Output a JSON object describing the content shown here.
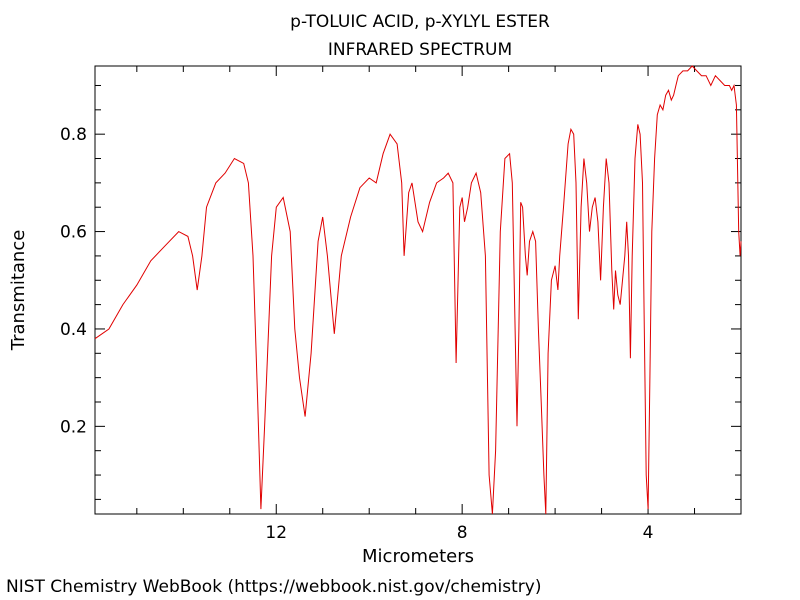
{
  "page": {
    "credit": "NIST Chemistry WebBook (https://webbook.nist.gov/chemistry)"
  },
  "chart_data": {
    "type": "line",
    "title": "p-TOLUIC ACID, p-XYLYL ESTER",
    "subtitle": "INFRARED SPECTRUM",
    "xlabel": "Micrometers",
    "ylabel": "Transmitance",
    "xlim": [
      15.9,
      2.0
    ],
    "ylim": [
      0.02,
      0.94
    ],
    "x_ticks": [
      12,
      8,
      4
    ],
    "y_ticks": [
      0.2,
      0.4,
      0.6,
      0.8
    ],
    "grid": false,
    "colors": {
      "line": "#e00000",
      "axes": "#000000"
    },
    "series": [
      {
        "points": [
          [
            15.9,
            0.38
          ],
          [
            15.6,
            0.4
          ],
          [
            15.3,
            0.45
          ],
          [
            15.0,
            0.49
          ],
          [
            14.7,
            0.54
          ],
          [
            14.4,
            0.57
          ],
          [
            14.1,
            0.6
          ],
          [
            13.9,
            0.59
          ],
          [
            13.8,
            0.55
          ],
          [
            13.7,
            0.48
          ],
          [
            13.6,
            0.55
          ],
          [
            13.5,
            0.65
          ],
          [
            13.3,
            0.7
          ],
          [
            13.1,
            0.72
          ],
          [
            12.9,
            0.75
          ],
          [
            12.7,
            0.74
          ],
          [
            12.6,
            0.7
          ],
          [
            12.5,
            0.55
          ],
          [
            12.4,
            0.25
          ],
          [
            12.33,
            0.03
          ],
          [
            12.25,
            0.2
          ],
          [
            12.1,
            0.55
          ],
          [
            12.0,
            0.65
          ],
          [
            11.85,
            0.67
          ],
          [
            11.7,
            0.6
          ],
          [
            11.6,
            0.4
          ],
          [
            11.5,
            0.3
          ],
          [
            11.38,
            0.22
          ],
          [
            11.25,
            0.35
          ],
          [
            11.1,
            0.58
          ],
          [
            11.0,
            0.63
          ],
          [
            10.9,
            0.55
          ],
          [
            10.75,
            0.39
          ],
          [
            10.6,
            0.55
          ],
          [
            10.4,
            0.63
          ],
          [
            10.2,
            0.69
          ],
          [
            10.0,
            0.71
          ],
          [
            9.85,
            0.7
          ],
          [
            9.7,
            0.76
          ],
          [
            9.55,
            0.8
          ],
          [
            9.4,
            0.78
          ],
          [
            9.3,
            0.7
          ],
          [
            9.25,
            0.55
          ],
          [
            9.15,
            0.68
          ],
          [
            9.08,
            0.7
          ],
          [
            8.95,
            0.62
          ],
          [
            8.85,
            0.6
          ],
          [
            8.7,
            0.66
          ],
          [
            8.55,
            0.7
          ],
          [
            8.4,
            0.71
          ],
          [
            8.3,
            0.72
          ],
          [
            8.2,
            0.7
          ],
          [
            8.13,
            0.33
          ],
          [
            8.05,
            0.65
          ],
          [
            8.0,
            0.67
          ],
          [
            7.95,
            0.62
          ],
          [
            7.88,
            0.65
          ],
          [
            7.8,
            0.7
          ],
          [
            7.7,
            0.72
          ],
          [
            7.6,
            0.68
          ],
          [
            7.5,
            0.55
          ],
          [
            7.42,
            0.1
          ],
          [
            7.35,
            0.02
          ],
          [
            7.28,
            0.15
          ],
          [
            7.18,
            0.6
          ],
          [
            7.08,
            0.75
          ],
          [
            6.98,
            0.76
          ],
          [
            6.92,
            0.7
          ],
          [
            6.86,
            0.4
          ],
          [
            6.82,
            0.2
          ],
          [
            6.78,
            0.4
          ],
          [
            6.74,
            0.66
          ],
          [
            6.7,
            0.65
          ],
          [
            6.64,
            0.55
          ],
          [
            6.6,
            0.51
          ],
          [
            6.55,
            0.58
          ],
          [
            6.48,
            0.6
          ],
          [
            6.42,
            0.58
          ],
          [
            6.36,
            0.4
          ],
          [
            6.3,
            0.25
          ],
          [
            6.24,
            0.1
          ],
          [
            6.2,
            0.02
          ],
          [
            6.15,
            0.35
          ],
          [
            6.08,
            0.5
          ],
          [
            6.0,
            0.53
          ],
          [
            5.94,
            0.48
          ],
          [
            5.9,
            0.55
          ],
          [
            5.82,
            0.65
          ],
          [
            5.72,
            0.78
          ],
          [
            5.66,
            0.81
          ],
          [
            5.6,
            0.8
          ],
          [
            5.55,
            0.7
          ],
          [
            5.5,
            0.42
          ],
          [
            5.44,
            0.65
          ],
          [
            5.38,
            0.75
          ],
          [
            5.32,
            0.7
          ],
          [
            5.26,
            0.6
          ],
          [
            5.2,
            0.65
          ],
          [
            5.14,
            0.67
          ],
          [
            5.08,
            0.62
          ],
          [
            5.02,
            0.5
          ],
          [
            4.96,
            0.65
          ],
          [
            4.9,
            0.75
          ],
          [
            4.84,
            0.7
          ],
          [
            4.78,
            0.52
          ],
          [
            4.74,
            0.44
          ],
          [
            4.7,
            0.52
          ],
          [
            4.65,
            0.47
          ],
          [
            4.6,
            0.45
          ],
          [
            4.55,
            0.5
          ],
          [
            4.5,
            0.55
          ],
          [
            4.46,
            0.62
          ],
          [
            4.42,
            0.55
          ],
          [
            4.38,
            0.34
          ],
          [
            4.34,
            0.55
          ],
          [
            4.28,
            0.75
          ],
          [
            4.22,
            0.82
          ],
          [
            4.17,
            0.8
          ],
          [
            4.12,
            0.7
          ],
          [
            4.08,
            0.4
          ],
          [
            4.04,
            0.1
          ],
          [
            4.0,
            0.03
          ],
          [
            3.96,
            0.3
          ],
          [
            3.92,
            0.6
          ],
          [
            3.86,
            0.75
          ],
          [
            3.8,
            0.84
          ],
          [
            3.74,
            0.86
          ],
          [
            3.68,
            0.85
          ],
          [
            3.62,
            0.88
          ],
          [
            3.56,
            0.89
          ],
          [
            3.5,
            0.87
          ],
          [
            3.45,
            0.88
          ],
          [
            3.4,
            0.9
          ],
          [
            3.35,
            0.92
          ],
          [
            3.25,
            0.93
          ],
          [
            3.15,
            0.93
          ],
          [
            3.05,
            0.94
          ],
          [
            2.95,
            0.93
          ],
          [
            2.85,
            0.92
          ],
          [
            2.75,
            0.92
          ],
          [
            2.65,
            0.9
          ],
          [
            2.55,
            0.92
          ],
          [
            2.45,
            0.91
          ],
          [
            2.35,
            0.9
          ],
          [
            2.25,
            0.9
          ],
          [
            2.2,
            0.89
          ],
          [
            2.15,
            0.9
          ],
          [
            2.1,
            0.86
          ],
          [
            2.05,
            0.6
          ],
          [
            2.02,
            0.55
          ],
          [
            2.0,
            0.58
          ]
        ]
      }
    ]
  }
}
